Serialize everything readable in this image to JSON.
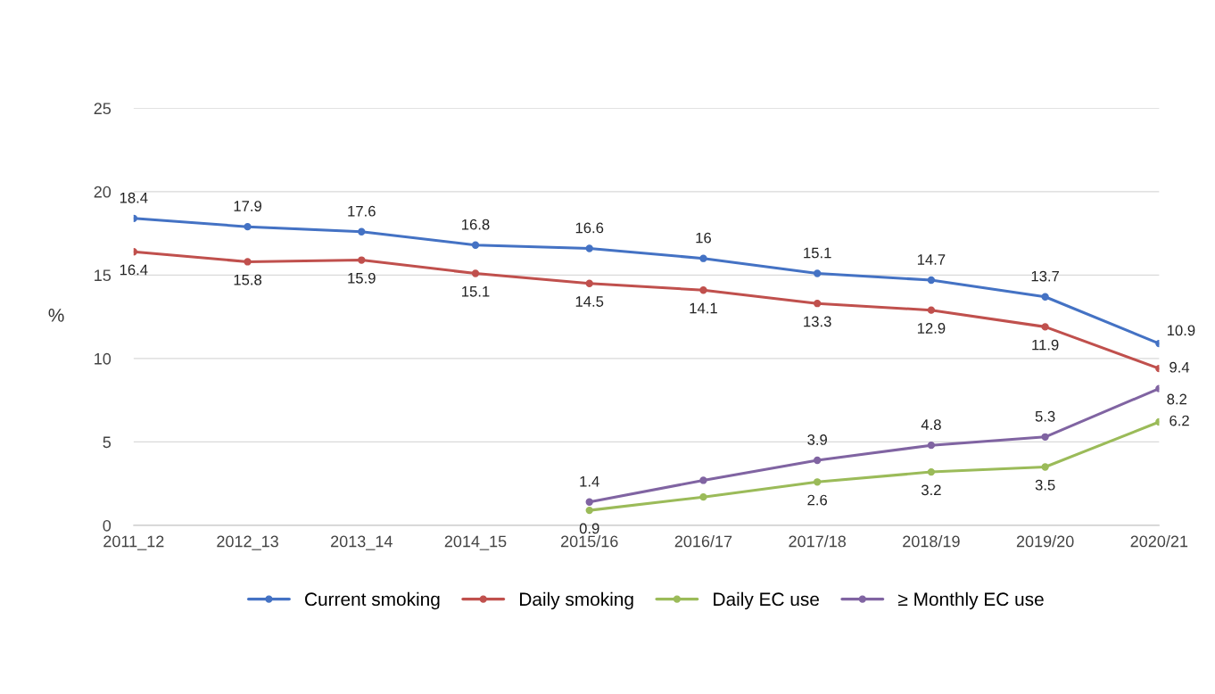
{
  "chart_data": {
    "type": "line",
    "ylabel": "%",
    "categories": [
      "2011_12",
      "2012_13",
      "2013_14",
      "2014_15",
      "2015/16",
      "2016/17",
      "2017/18",
      "2018/19",
      "2019/20",
      "2020/21"
    ],
    "series": [
      {
        "name": "Current smoking",
        "color": "#4472c4",
        "values": [
          18.4,
          17.9,
          17.6,
          16.8,
          16.6,
          16,
          15.1,
          14.7,
          13.7,
          10.9
        ],
        "value_labels": [
          "18.4",
          "17.9",
          "17.6",
          "16.8",
          "16.6",
          "16",
          "15.1",
          "14.7",
          "13.7",
          "10.9"
        ]
      },
      {
        "name": "Daily smoking",
        "color": "#c0504d",
        "values": [
          16.4,
          15.8,
          15.9,
          15.1,
          14.5,
          14.1,
          13.3,
          12.9,
          11.9,
          9.4
        ],
        "value_labels": [
          "16.4",
          "15.8",
          "15.9",
          "15.1",
          "14.5",
          "14.1",
          "13.3",
          "12.9",
          "11.9",
          "9.4"
        ]
      },
      {
        "name": "Daily EC use",
        "color": "#9bbb59",
        "values": [
          null,
          null,
          null,
          null,
          0.9,
          1.7,
          2.6,
          3.2,
          3.5,
          6.2
        ],
        "value_labels": [
          null,
          null,
          null,
          null,
          "0.9",
          null,
          "2.6",
          "3.2",
          "3.5",
          "6.2"
        ]
      },
      {
        "name": "≥ Monthly EC use",
        "color": "#8064a2",
        "values": [
          null,
          null,
          null,
          null,
          1.4,
          2.7,
          3.9,
          4.8,
          5.3,
          8.2
        ],
        "value_labels": [
          null,
          null,
          null,
          null,
          "1.4",
          null,
          "3.9",
          "4.8",
          "5.3",
          "8.2"
        ]
      }
    ],
    "ylim": [
      0,
      25
    ],
    "yticks": [
      0,
      5,
      10,
      15,
      20,
      25
    ],
    "grid": "y",
    "legend": "bottom",
    "marker": "circle",
    "line_style": "solid"
  }
}
